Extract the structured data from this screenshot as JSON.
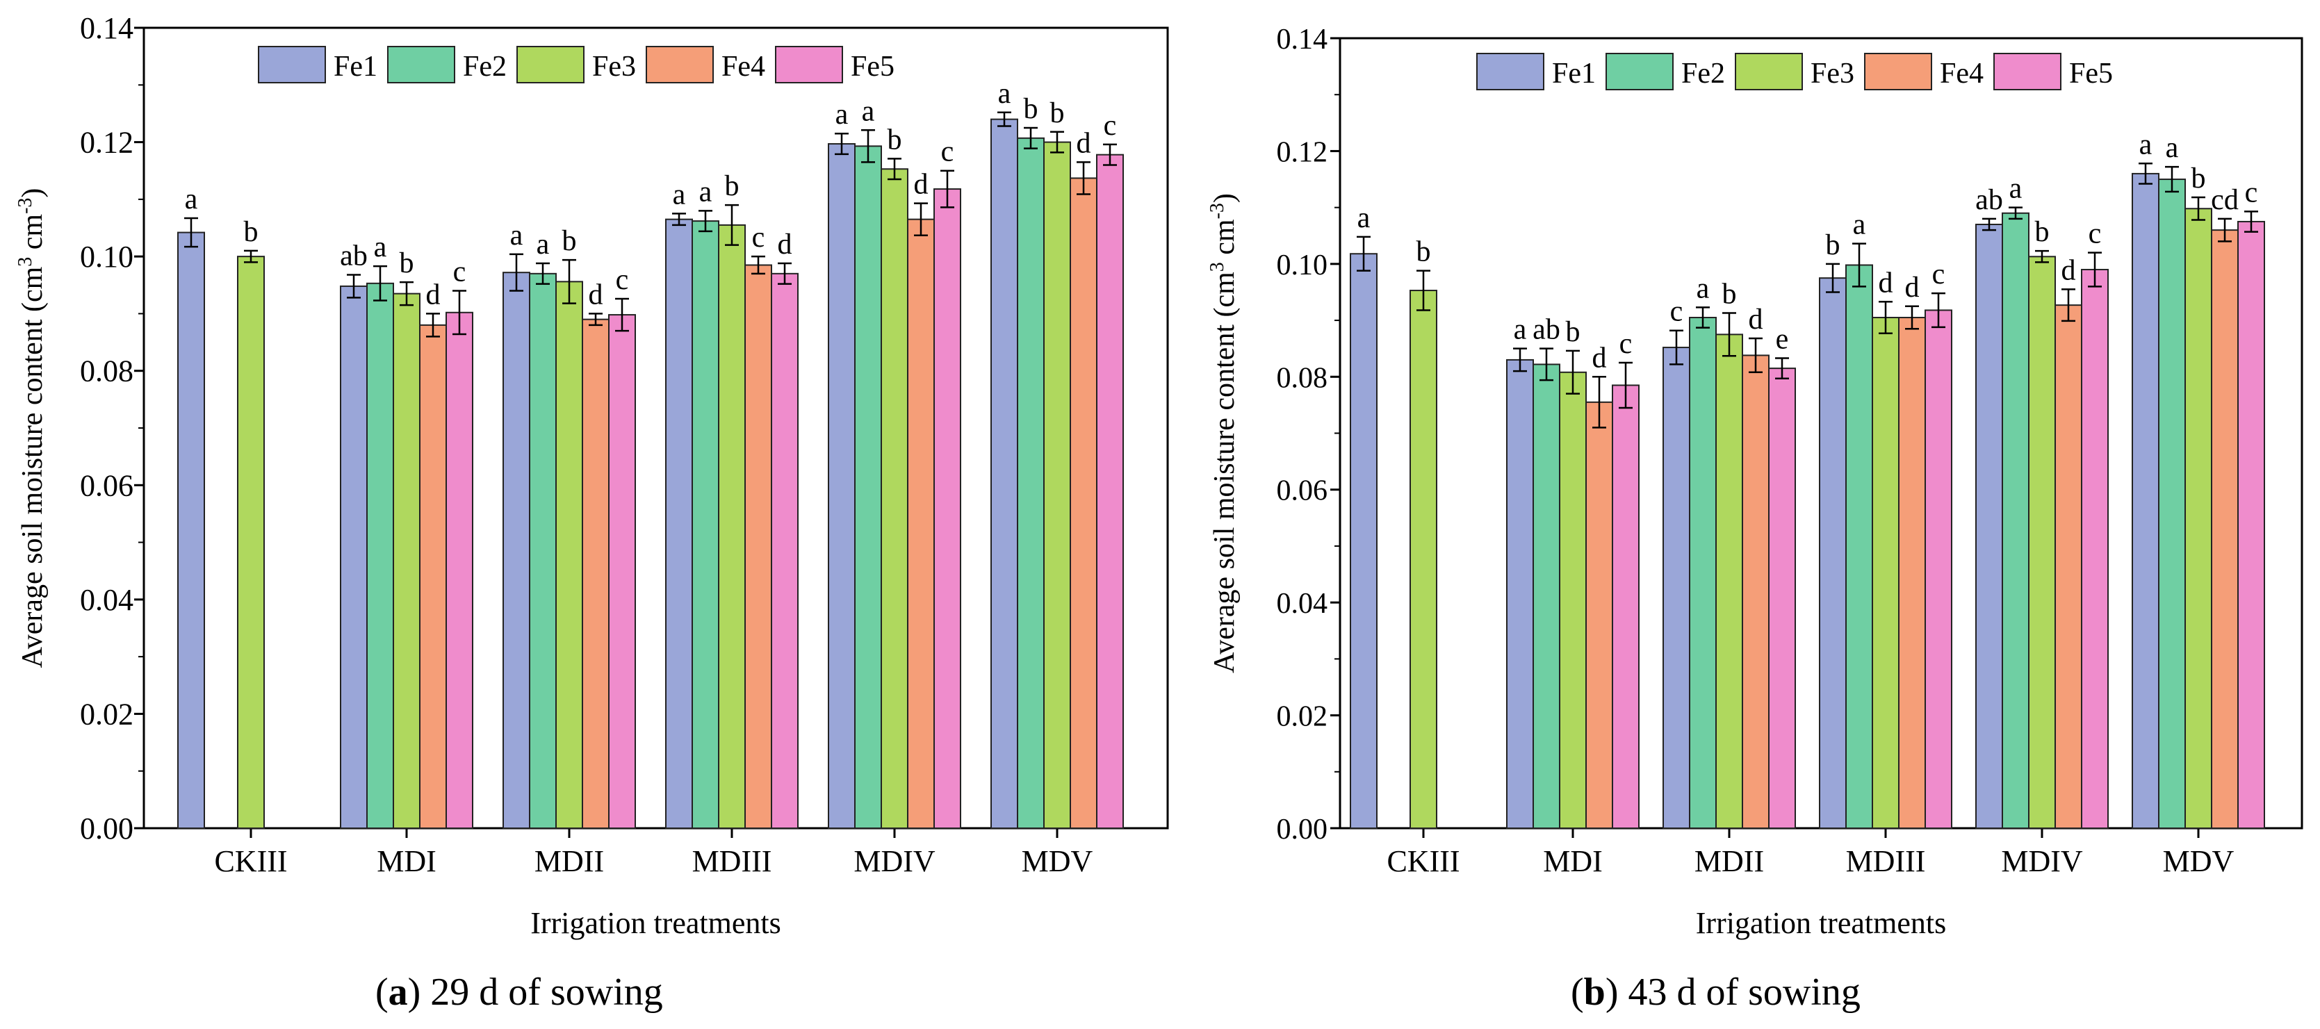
{
  "chart_data": [
    {
      "type": "bar",
      "panel": "a",
      "caption_letter": "a",
      "caption_text": ") 29 d of sowing",
      "caption_open": "(",
      "xlabel": "Irrigation treatments",
      "ylabel": "Average soil moisture content (cm3 cm-3)",
      "ylabel_main": "Average soil moisture content (cm",
      "ylabel_sup1": "3",
      "ylabel_mid": " cm",
      "ylabel_sup2": "-3",
      "ylabel_close": ")",
      "ylim": [
        0,
        0.14
      ],
      "yticks": [
        "0.00",
        "0.02",
        "0.04",
        "0.06",
        "0.08",
        "0.10",
        "0.12",
        "0.14"
      ],
      "legend_position": "top",
      "categories": [
        "CKIII",
        "MDI",
        "MDII",
        "MDIII",
        "MDIV",
        "MDV"
      ],
      "series": [
        {
          "name": "Fe1",
          "values": [
            0.1042,
            0.0948,
            0.0972,
            0.1065,
            0.1197,
            0.124
          ],
          "errors": [
            0.0025,
            0.002,
            0.0032,
            0.001,
            0.0018,
            0.0012
          ],
          "letters": [
            "a",
            "ab",
            "a",
            "a",
            "a",
            "a"
          ]
        },
        {
          "name": "Fe2",
          "values": [
            null,
            0.0953,
            0.097,
            0.1062,
            0.1193,
            0.1207
          ],
          "errors": [
            null,
            0.003,
            0.0018,
            0.0018,
            0.0028,
            0.0018
          ],
          "letters": [
            "",
            "a",
            "a",
            "a",
            "a",
            "b"
          ]
        },
        {
          "name": "Fe3",
          "values": [
            0.1,
            0.0935,
            0.0956,
            0.1055,
            0.1153,
            0.12
          ],
          "errors": [
            0.001,
            0.002,
            0.0038,
            0.0035,
            0.0018,
            0.0018
          ],
          "letters": [
            "b",
            "b",
            "b",
            "b",
            "b",
            "b"
          ]
        },
        {
          "name": "Fe4",
          "values": [
            null,
            0.088,
            0.089,
            0.0985,
            0.1065,
            0.1137
          ],
          "errors": [
            null,
            0.002,
            0.001,
            0.0015,
            0.0028,
            0.0028
          ],
          "letters": [
            "",
            "d",
            "d",
            "c",
            "d",
            "d"
          ]
        },
        {
          "name": "Fe5",
          "values": [
            null,
            0.0902,
            0.0898,
            0.097,
            0.1118,
            0.1178
          ],
          "errors": [
            null,
            0.0038,
            0.0028,
            0.0018,
            0.0032,
            0.0018
          ],
          "letters": [
            "",
            "c",
            "c",
            "d",
            "c",
            "c"
          ]
        }
      ]
    },
    {
      "type": "bar",
      "panel": "b",
      "caption_letter": "b",
      "caption_text": ") 43 d of sowing",
      "caption_open": "(",
      "xlabel": "Irrigation treatments",
      "ylabel": "Average soil moisture content (cm3 cm-3)",
      "ylabel_main": "Average soil moisture content (cm",
      "ylabel_sup1": "3",
      "ylabel_mid": " cm",
      "ylabel_sup2": "-3",
      "ylabel_close": ")",
      "ylim": [
        0,
        0.14
      ],
      "yticks": [
        "0.00",
        "0.02",
        "0.04",
        "0.06",
        "0.08",
        "0.10",
        "0.12",
        "0.14"
      ],
      "legend_position": "top",
      "categories": [
        "CKIII",
        "MDI",
        "MDII",
        "MDIII",
        "MDIV",
        "MDV"
      ],
      "series": [
        {
          "name": "Fe1",
          "values": [
            0.1018,
            0.083,
            0.0852,
            0.0975,
            0.107,
            0.116
          ],
          "errors": [
            0.003,
            0.002,
            0.003,
            0.0025,
            0.001,
            0.0018
          ],
          "letters": [
            "a",
            "a",
            "c",
            "b",
            "ab",
            "a"
          ]
        },
        {
          "name": "Fe2",
          "values": [
            null,
            0.0822,
            0.0905,
            0.0998,
            0.109,
            0.115
          ],
          "errors": [
            null,
            0.0028,
            0.0018,
            0.0038,
            0.001,
            0.0022
          ],
          "letters": [
            "",
            "ab",
            "a",
            "a",
            "a",
            "a"
          ]
        },
        {
          "name": "Fe3",
          "values": [
            0.0953,
            0.0808,
            0.0875,
            0.0905,
            0.1013,
            0.1098
          ],
          "errors": [
            0.0035,
            0.0038,
            0.0038,
            0.0028,
            0.001,
            0.002
          ],
          "letters": [
            "b",
            "b",
            "b",
            "d",
            "b",
            "b"
          ]
        },
        {
          "name": "Fe4",
          "values": [
            null,
            0.0755,
            0.0838,
            0.0905,
            0.0927,
            0.106
          ],
          "errors": [
            null,
            0.0045,
            0.003,
            0.002,
            0.0028,
            0.002
          ],
          "letters": [
            "",
            "d",
            "d",
            "d",
            "d",
            "cd"
          ]
        },
        {
          "name": "Fe5",
          "values": [
            null,
            0.0785,
            0.0815,
            0.0918,
            0.099,
            0.1075
          ],
          "errors": [
            null,
            0.004,
            0.0018,
            0.003,
            0.003,
            0.0018
          ],
          "letters": [
            "",
            "c",
            "e",
            "c",
            "c",
            "c"
          ]
        }
      ]
    }
  ],
  "colors": {
    "Fe1": "#9aa6d8",
    "Fe2": "#6fcfa3",
    "Fe3": "#afd85e",
    "Fe4": "#f59e78",
    "Fe5": "#ef8ccc"
  }
}
